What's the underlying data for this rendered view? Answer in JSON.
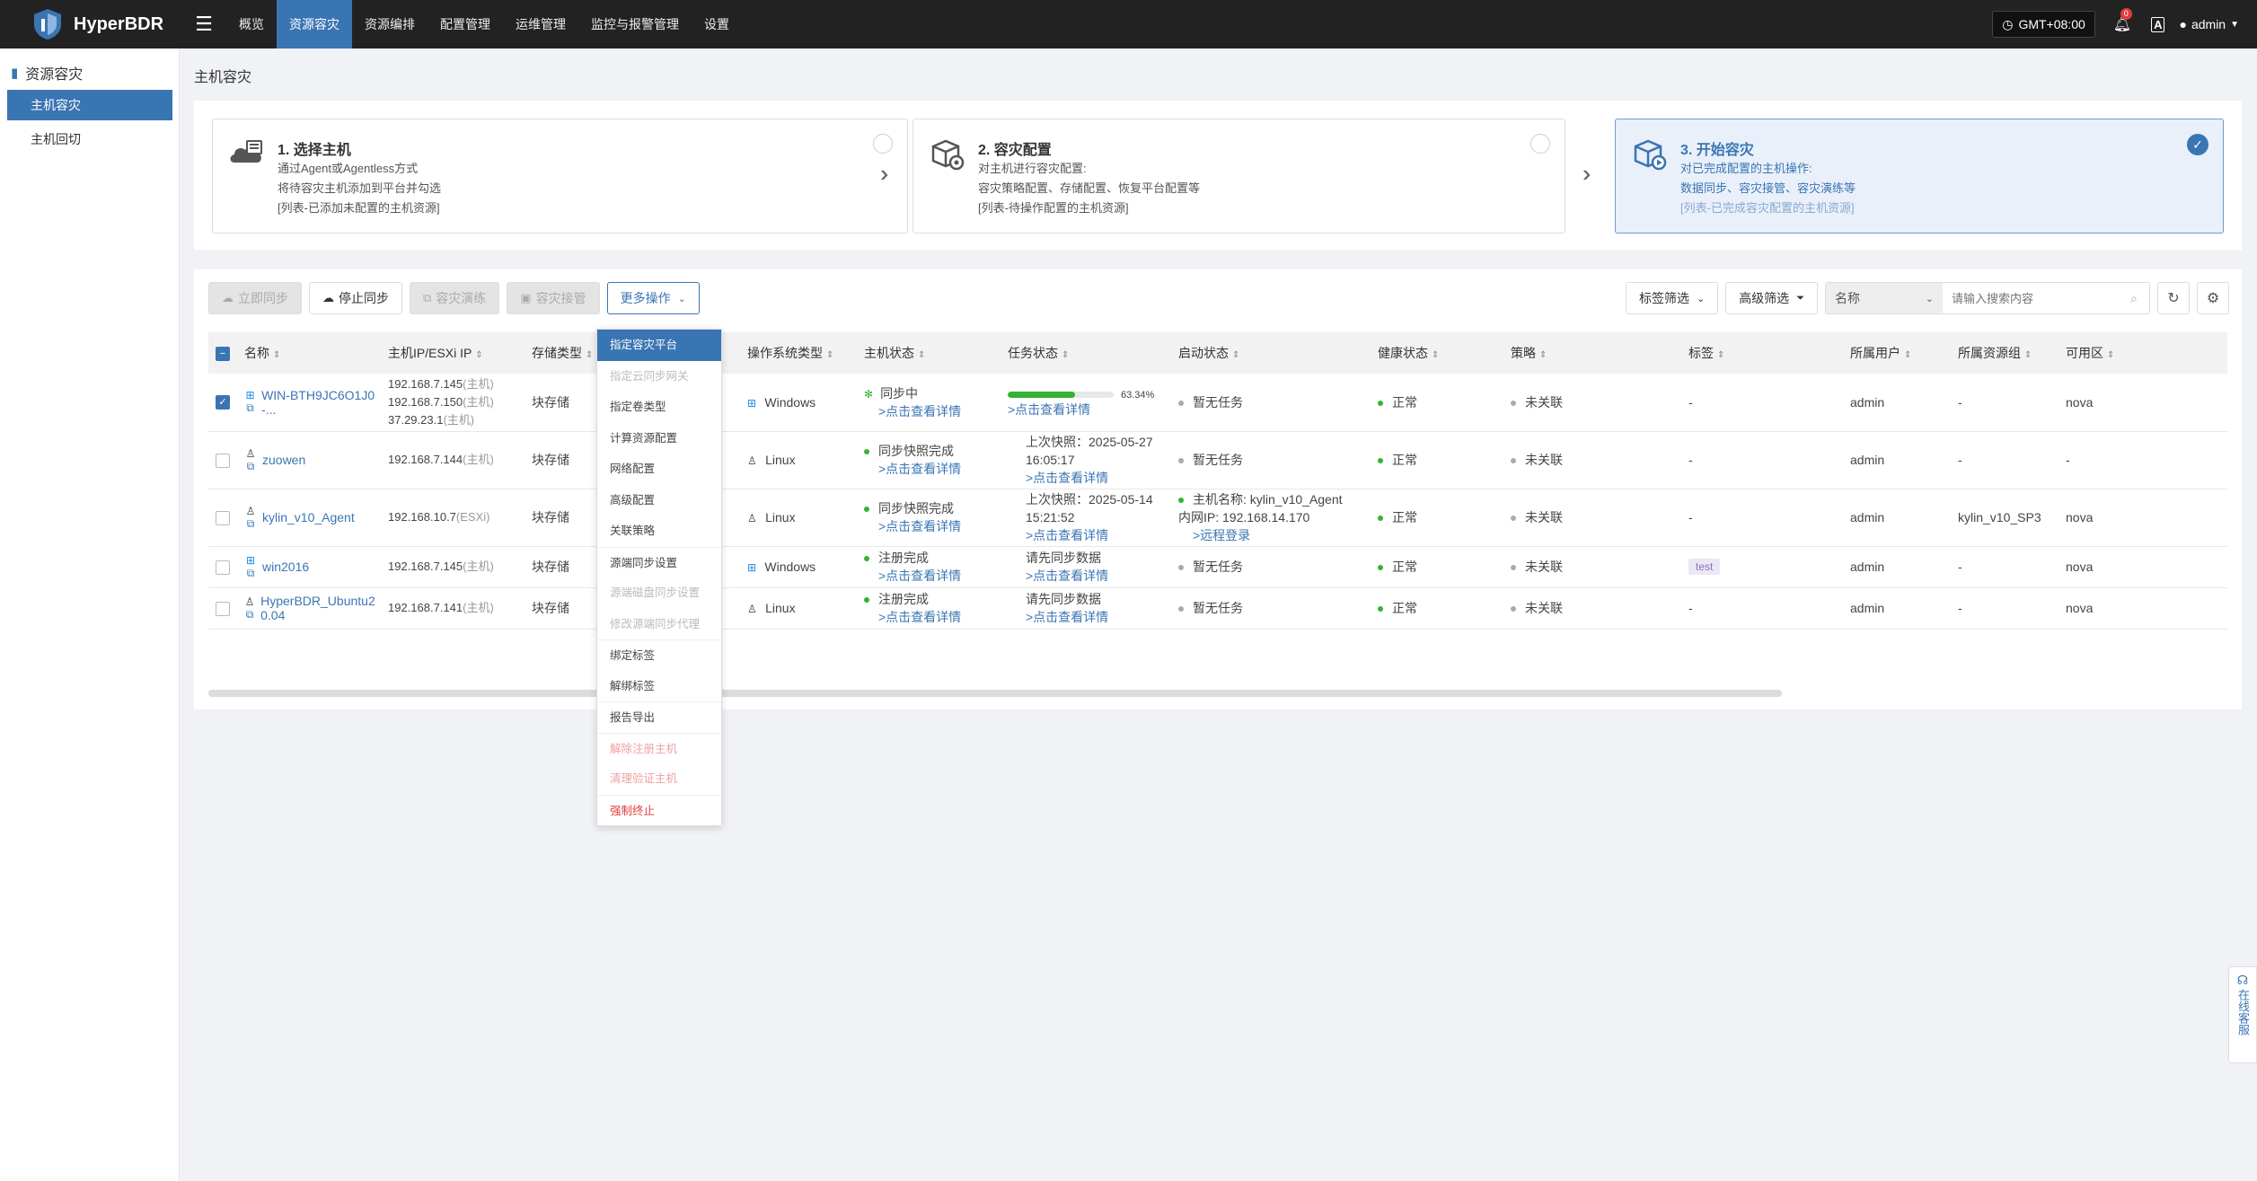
{
  "app": {
    "name": "HyperBDR"
  },
  "nav": [
    {
      "label": "概览",
      "active": false
    },
    {
      "label": "资源容灾",
      "active": true
    },
    {
      "label": "资源编排",
      "active": false
    },
    {
      "label": "配置管理",
      "active": false
    },
    {
      "label": "运维管理",
      "active": false
    },
    {
      "label": "监控与报警管理",
      "active": false
    },
    {
      "label": "设置",
      "active": false
    }
  ],
  "header": {
    "timezone": "GMT+08:00",
    "notifications": "0",
    "lang": "A",
    "user": "admin"
  },
  "sidebar": {
    "title": "资源容灾",
    "items": [
      {
        "label": "主机容灾",
        "active": true
      },
      {
        "label": "主机回切",
        "active": false
      }
    ]
  },
  "page": {
    "title": "主机容灾"
  },
  "steps": [
    {
      "title": "1. 选择主机",
      "lines": [
        "通过Agent或Agentless方式",
        "将待容灾主机添加到平台并勾选",
        "[列表-已添加未配置的主机资源]"
      ]
    },
    {
      "title": "2. 容灾配置",
      "lines": [
        "对主机进行容灾配置:",
        "容灾策略配置、存储配置、恢复平台配置等",
        "[列表-待操作配置的主机资源]"
      ]
    },
    {
      "title": "3. 开始容灾",
      "lines": [
        "对已完成配置的主机操作:",
        "数据同步、容灾接管、容灾演练等",
        "[列表-已完成容灾配置的主机资源]"
      ]
    }
  ],
  "toolbar": {
    "sync_now": "立即同步",
    "stop_sync": "停止同步",
    "drill": "容灾演练",
    "takeover": "容灾接管",
    "more": "更多操作",
    "tag_filter": "标签筛选",
    "advanced_filter": "高级筛选",
    "search_field": "名称",
    "search_placeholder": "请输入搜索内容"
  },
  "columns": [
    "名称",
    "主机IP/ESXi IP",
    "存储类型",
    "",
    "操作系统类型",
    "主机状态",
    "任务状态",
    "启动状态",
    "健康状态",
    "策略",
    "标签",
    "所属用户",
    "所属资源组",
    "可用区"
  ],
  "rows": [
    {
      "checked": true,
      "os": "windows",
      "name": "WIN-BTH9JC6O1J0-...",
      "ips": [
        {
          "ip": "192.168.7.145",
          "kind": "(主机)"
        },
        {
          "ip": "192.168.7.150",
          "kind": "(主机)"
        },
        {
          "ip": "37.29.23.1",
          "kind": "(主机)"
        }
      ],
      "storage": "块存储",
      "os_type": "Windows",
      "host_status": "同步中",
      "host_link": ">点击查看详情",
      "host_state": "syncing",
      "task_progress": 63.34,
      "task_progress_label": "63.34%",
      "task_lines": [],
      "task_link": ">点击查看详情",
      "boot_lines": [
        "暂无任务"
      ],
      "boot_link": "",
      "health": "正常",
      "policy": "未关联",
      "tag": "-",
      "owner": "admin",
      "group": "-",
      "zone": "nova"
    },
    {
      "checked": false,
      "os": "linux",
      "name": "zuowen",
      "ips": [
        {
          "ip": "192.168.7.144",
          "kind": "(主机)"
        }
      ],
      "storage": "块存储",
      "os_type": "Linux",
      "host_status": "同步快照完成",
      "host_link": ">点击查看详情",
      "host_state": "ok",
      "task_progress": null,
      "task_progress_label": "",
      "task_lines": [
        "上次快照：2025-05-27",
        "16:05:17"
      ],
      "task_link": ">点击查看详情",
      "boot_lines": [
        "暂无任务"
      ],
      "boot_link": "",
      "health": "正常",
      "policy": "未关联",
      "tag": "-",
      "owner": "admin",
      "group": "-",
      "zone": "-"
    },
    {
      "checked": false,
      "os": "linux",
      "name": "kylin_v10_Agent",
      "ips": [
        {
          "ip": "192.168.10.7",
          "kind": "(ESXi)"
        }
      ],
      "storage": "块存储",
      "os_type": "Linux",
      "host_status": "同步快照完成",
      "host_link": ">点击查看详情",
      "host_state": "ok",
      "task_progress": null,
      "task_progress_label": "",
      "task_lines": [
        "上次快照：2025-05-14",
        "15:21:52"
      ],
      "task_link": ">点击查看详情",
      "boot_lines": [
        "主机名称: kylin_v10_Agent",
        "内网IP: 192.168.14.170"
      ],
      "boot_link": ">远程登录",
      "health": "正常",
      "policy": "未关联",
      "tag": "-",
      "owner": "admin",
      "group": "kylin_v10_SP3",
      "zone": "nova"
    },
    {
      "checked": false,
      "os": "windows",
      "name": "win2016",
      "ips": [
        {
          "ip": "192.168.7.145",
          "kind": "(主机)"
        }
      ],
      "storage": "块存储",
      "os_type": "Windows",
      "host_status": "注册完成",
      "host_link": ">点击查看详情",
      "host_state": "ok",
      "task_progress": null,
      "task_progress_label": "",
      "task_lines": [
        "请先同步数据"
      ],
      "task_link": ">点击查看详情",
      "boot_lines": [
        "暂无任务"
      ],
      "boot_link": "",
      "health": "正常",
      "policy": "未关联",
      "tag": "test",
      "owner": "admin",
      "group": "-",
      "zone": "nova"
    },
    {
      "checked": false,
      "os": "linux",
      "name": "HyperBDR_Ubuntu20.04",
      "ips": [
        {
          "ip": "192.168.7.141",
          "kind": "(主机)"
        }
      ],
      "storage": "块存储",
      "os_type": "Linux",
      "host_status": "注册完成",
      "host_link": ">点击查看详情",
      "host_state": "ok",
      "task_progress": null,
      "task_progress_label": "",
      "task_lines": [
        "请先同步数据"
      ],
      "task_link": ">点击查看详情",
      "boot_lines": [
        "暂无任务"
      ],
      "boot_link": "",
      "health": "正常",
      "policy": "未关联",
      "tag": "-",
      "owner": "admin",
      "group": "-",
      "zone": "nova"
    }
  ],
  "more_menu": [
    {
      "label": "指定容灾平台",
      "state": "active"
    },
    {
      "label": "指定云同步网关",
      "state": "disabled"
    },
    {
      "label": "指定卷类型",
      "state": "normal"
    },
    {
      "label": "计算资源配置",
      "state": "normal"
    },
    {
      "label": "网络配置",
      "state": "normal"
    },
    {
      "label": "高级配置",
      "state": "normal"
    },
    {
      "label": "关联策略",
      "state": "normal"
    },
    {
      "label": "源端同步设置",
      "state": "normal",
      "sep": true
    },
    {
      "label": "源端磁盘同步设置",
      "state": "disabled"
    },
    {
      "label": "修改源端同步代理",
      "state": "disabled"
    },
    {
      "label": "绑定标签",
      "state": "normal",
      "sep": true
    },
    {
      "label": "解绑标签",
      "state": "normal"
    },
    {
      "label": "报告导出",
      "state": "normal",
      "sep": true
    },
    {
      "label": "解除注册主机",
      "state": "danger-light",
      "sep": true
    },
    {
      "label": "清理验证主机",
      "state": "danger-light"
    },
    {
      "label": "强制终止",
      "state": "danger",
      "sep": true
    }
  ],
  "online_service": "在线客服",
  "colors": {
    "brand": "#3a75b3",
    "topbar": "#222222",
    "success": "#34b233"
  }
}
